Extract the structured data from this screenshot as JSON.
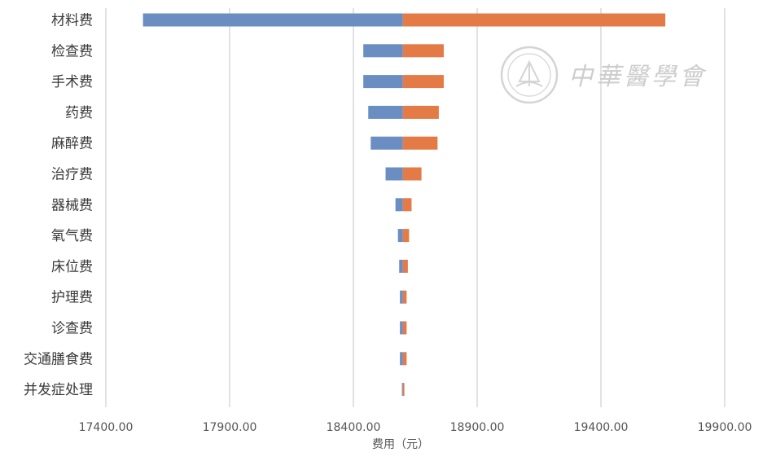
{
  "chart_data": {
    "type": "bar",
    "orientation": "horizontal",
    "layout": "tornado",
    "base_value": 18600,
    "categories": [
      "材料费",
      "检查费",
      "手术费",
      "药费",
      "麻醉费",
      "治疗费",
      "器械费",
      "氧气费",
      "床位费",
      "护理费",
      "诊查费",
      "交通膳食费",
      "并发症处理"
    ],
    "series": [
      {
        "color": "#6a8ec2",
        "values": [
          17550,
          18440,
          18440,
          18460,
          18470,
          18530,
          18570,
          18580,
          18585,
          18588,
          18588,
          18588,
          18596
        ]
      },
      {
        "color": "#e47b46",
        "values": [
          19660,
          18765,
          18765,
          18745,
          18740,
          18675,
          18635,
          18625,
          18620,
          18615,
          18615,
          18615,
          18606
        ]
      }
    ],
    "xlim": [
      17400,
      19900
    ],
    "xticks": [
      17400,
      17900,
      18400,
      18900,
      19400,
      19900
    ],
    "xtick_labels": [
      "17400.00",
      "17900.00",
      "18400.00",
      "18900.00",
      "19400.00",
      "19900.00"
    ],
    "xlabel": "费用（元）",
    "ylabel": "",
    "title": "",
    "grid": "vertical"
  },
  "watermark": {
    "text": "中華醫學會"
  }
}
